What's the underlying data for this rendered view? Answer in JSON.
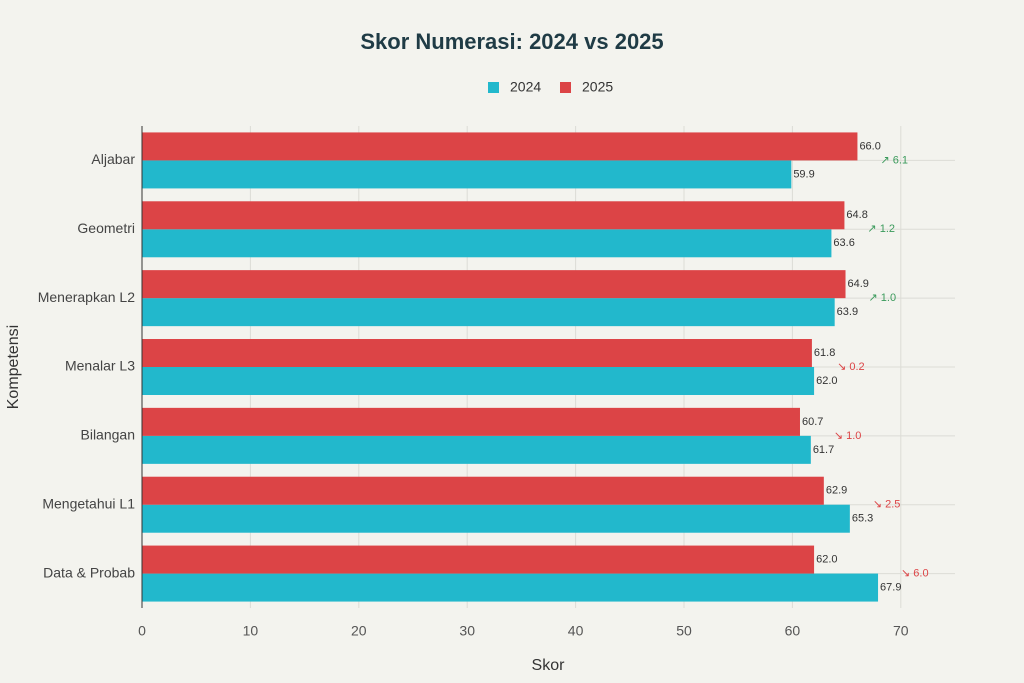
{
  "chart_data": {
    "type": "hbar",
    "title": "Skor Numerasi: 2024 vs 2025",
    "x_label": "Skor",
    "y_label": "Kompetensi",
    "categories": [
      "Aljabar",
      "Geometri",
      "Menerapkan L2",
      "Menalar L3",
      "Bilangan",
      "Mengetahui L1",
      "Data & Probab"
    ],
    "series": [
      {
        "name": "2024",
        "color": "#22b8cc",
        "values": [
          59.9,
          63.6,
          63.9,
          62.0,
          61.7,
          65.3,
          67.9
        ],
        "value_labels": [
          "59.9",
          "63.6",
          "63.9",
          "62.0",
          "61.7",
          "65.3",
          "67.9"
        ]
      },
      {
        "name": "2025",
        "color": "#dc4446",
        "values": [
          66.0,
          64.8,
          64.9,
          61.8,
          60.7,
          62.9,
          62.0
        ],
        "value_labels": [
          "66.0",
          "64.8",
          "64.9",
          "61.8",
          "60.7",
          "62.9",
          "62.0"
        ]
      }
    ],
    "annotations": [
      {
        "text": "↗ 6.1",
        "color": "#3a9a5b"
      },
      {
        "text": "↗ 1.2",
        "color": "#3a9a5b"
      },
      {
        "text": "↗ 1.0",
        "color": "#3a9a5b"
      },
      {
        "text": "↘ 0.2",
        "color": "#dc4446"
      },
      {
        "text": "↘ 1.0",
        "color": "#dc4446"
      },
      {
        "text": "↘ 2.5",
        "color": "#dc4446"
      },
      {
        "text": "↘ 6.0",
        "color": "#dc4446"
      }
    ],
    "xlim": [
      0,
      75
    ],
    "xticks": [
      0,
      10,
      20,
      30,
      40,
      50,
      60,
      70
    ],
    "grid": true,
    "legend": "top"
  }
}
